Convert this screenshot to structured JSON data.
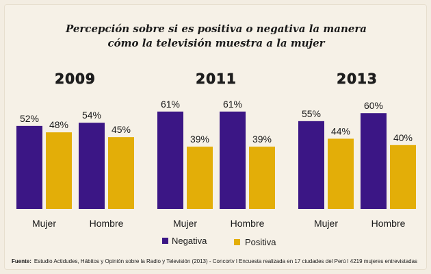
{
  "title_line1": "Percepción sobre si es positiva o negativa la manera",
  "title_line2": "cómo la televisión muestra a la mujer",
  "colors": {
    "negativa": "#3b1685",
    "positiva": "#e3ae08",
    "background": "#f6f1e7"
  },
  "source_label": "Fuente:",
  "source_text": "Estudio Actidudes, Hábitos y Opinión sobre la Radio y Televisión (2013) - Concortv l Encuesta realizada en 17 ciudades del Perú l 4219 mujeres entrevistadas",
  "chart_data": {
    "type": "bar",
    "value_suffix": "%",
    "ylim": [
      0,
      100
    ],
    "legend": [
      "Negativa",
      "Positiva"
    ],
    "groups": [
      {
        "year": "2009",
        "categories": [
          "Mujer",
          "Hombre"
        ],
        "series": [
          {
            "name": "Negativa",
            "values": [
              52,
              54
            ]
          },
          {
            "name": "Positiva",
            "values": [
              48,
              45
            ]
          }
        ]
      },
      {
        "year": "2011",
        "categories": [
          "Mujer",
          "Hombre"
        ],
        "series": [
          {
            "name": "Negativa",
            "values": [
              61,
              61
            ]
          },
          {
            "name": "Positiva",
            "values": [
              39,
              39
            ]
          }
        ]
      },
      {
        "year": "2013",
        "categories": [
          "Mujer",
          "Hombre"
        ],
        "series": [
          {
            "name": "Negativa",
            "values": [
              55,
              60
            ]
          },
          {
            "name": "Positiva",
            "values": [
              44,
              40
            ]
          }
        ]
      }
    ]
  }
}
